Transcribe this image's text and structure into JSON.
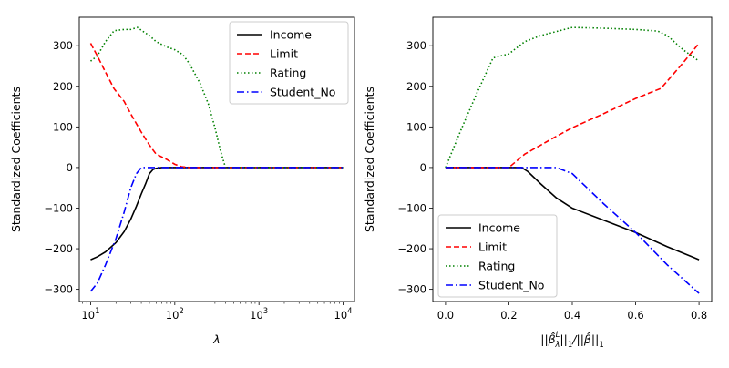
{
  "chart_data": [
    {
      "type": "line",
      "xlabel": "λ",
      "ylabel": "Standardized Coefficients",
      "xscale": "log",
      "xlim": [
        10,
        10000
      ],
      "ylim": [
        -330,
        370
      ],
      "xticks": [
        10,
        100,
        1000,
        10000
      ],
      "xtick_labels": [
        {
          "base": "10",
          "exp": "1"
        },
        {
          "base": "10",
          "exp": "2"
        },
        {
          "base": "10",
          "exp": "3"
        },
        {
          "base": "10",
          "exp": "4"
        }
      ],
      "yticks": [
        -300,
        -200,
        -100,
        0,
        100,
        200,
        300
      ],
      "ytick_labels": [
        "−300",
        "−200",
        "−100",
        "0",
        "100",
        "200",
        "300"
      ],
      "legend_position": "top-right",
      "grid": false,
      "series": [
        {
          "name": "Income",
          "color": "#000000",
          "style": "solid",
          "x": [
            10,
            12,
            15,
            20,
            25,
            30,
            35,
            40,
            45,
            50,
            55,
            60,
            70,
            100,
            1000,
            10000
          ],
          "y": [
            -227,
            -220,
            -208,
            -185,
            -158,
            -127,
            -95,
            -65,
            -40,
            -15,
            -5,
            -2,
            0,
            0,
            0,
            0
          ]
        },
        {
          "name": "Limit",
          "color": "#ff0000",
          "style": "dashed",
          "x": [
            10,
            12,
            15,
            19,
            25,
            30,
            40,
            50,
            60,
            80,
            100,
            120,
            150,
            1000,
            10000
          ],
          "y": [
            306,
            275,
            235,
            194,
            163,
            132,
            87,
            55,
            33,
            20,
            8,
            2,
            0,
            0,
            0
          ]
        },
        {
          "name": "Rating",
          "color": "#008000",
          "style": "dotted",
          "x": [
            10,
            12,
            15,
            19,
            25,
            30,
            36,
            40,
            50,
            60,
            80,
            100,
            125,
            150,
            200,
            250,
            300,
            350,
            400,
            500,
            1000,
            10000
          ],
          "y": [
            262,
            275,
            310,
            337,
            340,
            340,
            345,
            338,
            325,
            310,
            297,
            290,
            278,
            255,
            207,
            157,
            98,
            40,
            0,
            0,
            0,
            0
          ]
        },
        {
          "name": "Student_No",
          "color": "#0000ff",
          "style": "dashdot",
          "x": [
            10,
            12,
            15,
            20,
            25,
            30,
            35,
            40,
            50,
            100,
            1000,
            10000
          ],
          "y": [
            -305,
            -285,
            -240,
            -175,
            -110,
            -50,
            -15,
            0,
            0,
            0,
            0,
            0
          ]
        }
      ]
    },
    {
      "type": "line",
      "xlabel": "||β̂ᴸλ||₁/||β̂||₁",
      "xlabel_parts": {
        "lhs_sub": "λ",
        "lhs_sup": "L",
        "norm_sub": "1"
      },
      "ylabel": "Standardized Coefficients",
      "xscale": "linear",
      "xlim": [
        -0.04,
        0.84
      ],
      "ylim": [
        -330,
        370
      ],
      "xticks": [
        0.0,
        0.2,
        0.4,
        0.6,
        0.8
      ],
      "xtick_labels": [
        "0.0",
        "0.2",
        "0.4",
        "0.6",
        "0.8"
      ],
      "yticks": [
        -300,
        -200,
        -100,
        0,
        100,
        200,
        300
      ],
      "ytick_labels": [
        "−300",
        "−200",
        "−100",
        "0",
        "100",
        "200",
        "300"
      ],
      "legend_position": "bottom-left",
      "grid": false,
      "series": [
        {
          "name": "Income",
          "color": "#000000",
          "style": "solid",
          "x": [
            0.0,
            0.1,
            0.2,
            0.24,
            0.26,
            0.3,
            0.35,
            0.4,
            0.5,
            0.6,
            0.7,
            0.8
          ],
          "y": [
            0,
            0,
            0,
            0,
            -10,
            -40,
            -75,
            -100,
            -130,
            -160,
            -195,
            -227
          ]
        },
        {
          "name": "Limit",
          "color": "#ff0000",
          "style": "dashed",
          "x": [
            0.0,
            0.1,
            0.2,
            0.25,
            0.3,
            0.35,
            0.4,
            0.5,
            0.6,
            0.68,
            0.75,
            0.8
          ],
          "y": [
            0,
            0,
            0,
            33,
            55,
            77,
            98,
            133,
            170,
            195,
            258,
            306
          ]
        },
        {
          "name": "Rating",
          "color": "#008000",
          "style": "dotted",
          "x": [
            0.0,
            0.05,
            0.1,
            0.15,
            0.2,
            0.25,
            0.3,
            0.35,
            0.4,
            0.5,
            0.6,
            0.67,
            0.7,
            0.75,
            0.8
          ],
          "y": [
            0,
            95,
            185,
            270,
            280,
            310,
            325,
            335,
            345,
            343,
            340,
            336,
            325,
            290,
            262
          ]
        },
        {
          "name": "Student_No",
          "color": "#0000ff",
          "style": "dashdot",
          "x": [
            0.0,
            0.1,
            0.2,
            0.3,
            0.35,
            0.4,
            0.5,
            0.6,
            0.7,
            0.8
          ],
          "y": [
            0,
            0,
            0,
            0,
            0,
            -15,
            -90,
            -160,
            -240,
            -310
          ]
        }
      ]
    }
  ]
}
